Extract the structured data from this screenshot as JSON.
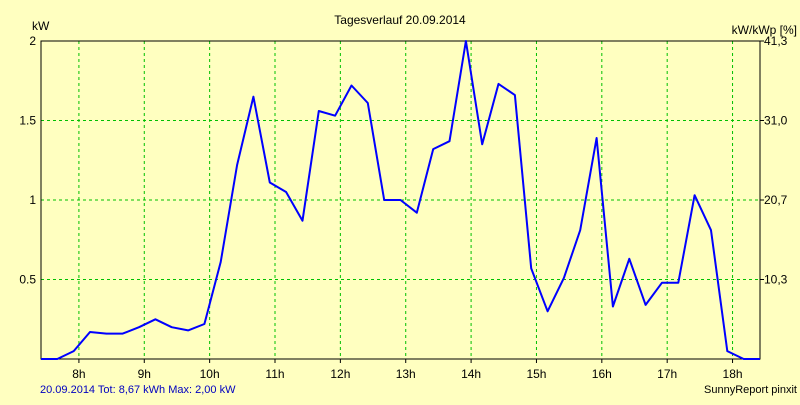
{
  "chart_data": {
    "type": "line",
    "title": "Tagesverlauf 20.09.2014",
    "y_left_unit": "kW",
    "y_right_unit": "kW/kWp [%]",
    "y_left_ticks": [
      "0.5",
      "1",
      "1.5",
      "2"
    ],
    "y_right_ticks": [
      "10,3",
      "20,7",
      "31,0",
      "41,3"
    ],
    "y_right_tick_values": [
      0.5,
      1,
      1.5,
      2
    ],
    "x_ticks": [
      "8h",
      "9h",
      "10h",
      "11h",
      "12h",
      "13h",
      "14h",
      "15h",
      "16h",
      "17h",
      "18h"
    ],
    "x_tick_values": [
      8,
      9,
      10,
      11,
      12,
      13,
      14,
      15,
      16,
      17,
      18
    ],
    "xlim": [
      7.42,
      18.42
    ],
    "ylim": [
      0,
      2
    ],
    "grid": true,
    "series": [
      {
        "color": "#0000ff",
        "x": [
          7.42,
          7.67,
          7.92,
          8.17,
          8.42,
          8.67,
          8.92,
          9.17,
          9.42,
          9.67,
          9.92,
          10.17,
          10.42,
          10.67,
          10.92,
          11.17,
          11.42,
          11.67,
          11.92,
          12.17,
          12.42,
          12.67,
          12.92,
          13.17,
          13.42,
          13.67,
          13.92,
          14.17,
          14.42,
          14.67,
          14.92,
          15.17,
          15.42,
          15.67,
          15.92,
          16.17,
          16.42,
          16.67,
          16.92,
          17.17,
          17.42,
          17.67,
          17.92,
          18.17,
          18.42
        ],
        "y": [
          0,
          0,
          0.05,
          0.17,
          0.16,
          0.16,
          0.2,
          0.25,
          0.2,
          0.18,
          0.22,
          0.61,
          1.22,
          1.65,
          1.11,
          1.05,
          0.87,
          1.56,
          1.53,
          1.72,
          1.61,
          1.0,
          1.0,
          0.92,
          1.32,
          1.37,
          2.0,
          1.35,
          1.73,
          1.66,
          0.57,
          0.3,
          0.51,
          0.81,
          1.39,
          0.33,
          0.63,
          0.34,
          0.48,
          0.48,
          1.03,
          0.81,
          0.05,
          0,
          0
        ]
      }
    ]
  },
  "footer": {
    "left": "20.09.2014 Tot: 8,67 kWh Max: 2,00 kW",
    "right": "SunnyReport pinxit"
  },
  "colors": {
    "background": "#ffffc0",
    "grid": "#00c000",
    "line": "#0000ff",
    "footer_left": "#0000c0"
  }
}
